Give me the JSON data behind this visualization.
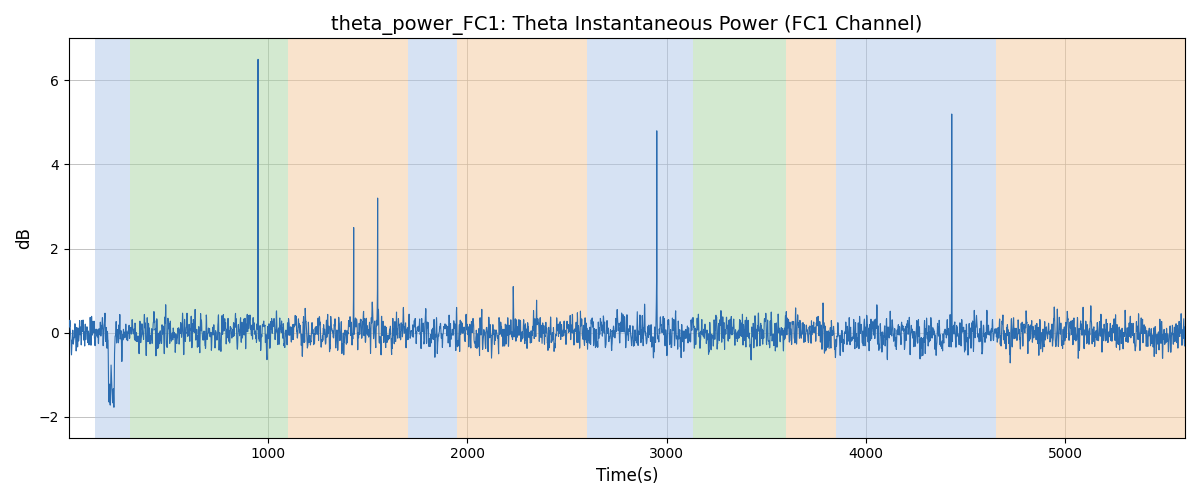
{
  "title": "theta_power_FC1: Theta Instantaneous Power (FC1 Channel)",
  "xlabel": "Time(s)",
  "ylabel": "dB",
  "xlim": [
    0,
    5600
  ],
  "ylim": [
    -2.5,
    7.0
  ],
  "yticks": [
    -2,
    0,
    2,
    4,
    6
  ],
  "xticks": [
    1000,
    2000,
    3000,
    4000,
    5000
  ],
  "line_color": "#2b6cb0",
  "bg_color": "#ffffff",
  "grid_color": "#aaaaaa",
  "bands": [
    {
      "xmin": 130,
      "xmax": 310,
      "color": "#aec6e8",
      "alpha": 0.5
    },
    {
      "xmin": 310,
      "xmax": 1100,
      "color": "#a8d5a2",
      "alpha": 0.5
    },
    {
      "xmin": 1100,
      "xmax": 1700,
      "color": "#f5c99a",
      "alpha": 0.5
    },
    {
      "xmin": 1700,
      "xmax": 1950,
      "color": "#aec6e8",
      "alpha": 0.5
    },
    {
      "xmin": 1950,
      "xmax": 2600,
      "color": "#f5c99a",
      "alpha": 0.5
    },
    {
      "xmin": 2600,
      "xmax": 3050,
      "color": "#aec6e8",
      "alpha": 0.5
    },
    {
      "xmin": 3050,
      "xmax": 3130,
      "color": "#aec6e8",
      "alpha": 0.5
    },
    {
      "xmin": 3130,
      "xmax": 3600,
      "color": "#a8d5a2",
      "alpha": 0.5
    },
    {
      "xmin": 3600,
      "xmax": 3850,
      "color": "#f5c99a",
      "alpha": 0.5
    },
    {
      "xmin": 3850,
      "xmax": 4650,
      "color": "#aec6e8",
      "alpha": 0.5
    },
    {
      "xmin": 4650,
      "xmax": 4800,
      "color": "#f5c99a",
      "alpha": 0.5
    },
    {
      "xmin": 4800,
      "xmax": 5600,
      "color": "#f5c99a",
      "alpha": 0.5
    }
  ],
  "seed": 42,
  "n_points": 5500,
  "title_fontsize": 14
}
